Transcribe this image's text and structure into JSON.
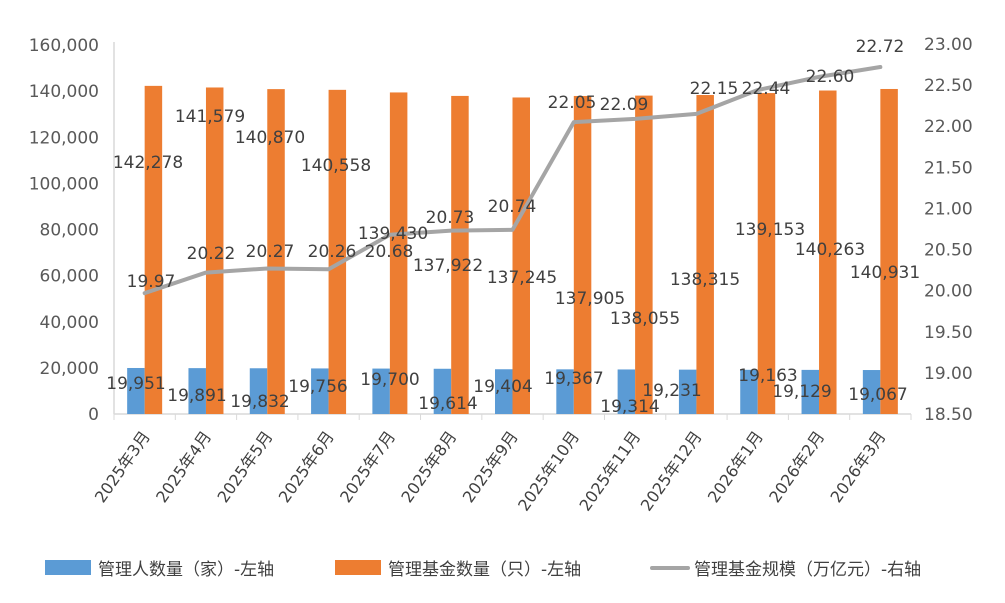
{
  "chart_data": {
    "type": "bar+line",
    "categories": [
      "2025年3月",
      "2025年4月",
      "2025年5月",
      "2025年6月",
      "2025年7月",
      "2025年8月",
      "2025年9月",
      "2025年10月",
      "2025年11月",
      "2025年12月",
      "2026年1月",
      "2026年2月",
      "2026年3月"
    ],
    "series": [
      {
        "name": "管理人数量（家）-左轴",
        "type": "bar",
        "axis": "left",
        "color": "#5b9bd5",
        "values": [
          19951,
          19891,
          19832,
          19756,
          19700,
          19614,
          19404,
          19367,
          19314,
          19231,
          19163,
          19129,
          19067
        ],
        "labels": [
          "19,951",
          "19,891",
          "19,832",
          "19,756",
          "19,700",
          "19,614",
          "19,404",
          "19,367",
          "19,314",
          "19,231",
          "19,163",
          "19,129",
          "19,067"
        ]
      },
      {
        "name": "管理基金数量（只）-左轴",
        "type": "bar",
        "axis": "left",
        "color": "#ed7d31",
        "values": [
          142278,
          141579,
          140870,
          140558,
          139430,
          137922,
          137245,
          137905,
          138055,
          138315,
          139153,
          140263,
          140931
        ],
        "labels": [
          "142,278",
          "141,579",
          "140,870",
          "140,558",
          "139,430",
          "137,922",
          "137,245",
          "137,905",
          "138,055",
          "138,315",
          "139,153",
          "140,263",
          "140,931"
        ]
      },
      {
        "name": "管理基金规模（万亿元）-右轴",
        "type": "line",
        "axis": "right",
        "color": "#a5a5a5",
        "values": [
          19.97,
          20.22,
          20.27,
          20.26,
          20.68,
          20.73,
          20.74,
          22.05,
          22.09,
          22.15,
          22.44,
          22.6,
          22.72
        ],
        "labels": [
          "19.97",
          "20.22",
          "20.27",
          "20.26",
          "20.68",
          "20.73",
          "20.74",
          "22.05",
          "22.09",
          "22.15",
          "22.44",
          "22.60",
          "22.72"
        ]
      }
    ],
    "y_left": {
      "range": [
        0,
        160000
      ],
      "ticks": [
        "0",
        "20,000",
        "40,000",
        "60,000",
        "80,000",
        "100,000",
        "120,000",
        "140,000",
        "160,000"
      ]
    },
    "y_right": {
      "range": [
        18.5,
        23
      ],
      "ticks": [
        "18.50",
        "19.00",
        "19.50",
        "20.00",
        "20.50",
        "21.00",
        "21.50",
        "22.00",
        "22.50",
        "23.00"
      ]
    },
    "grid": false,
    "legend": "bottom"
  }
}
